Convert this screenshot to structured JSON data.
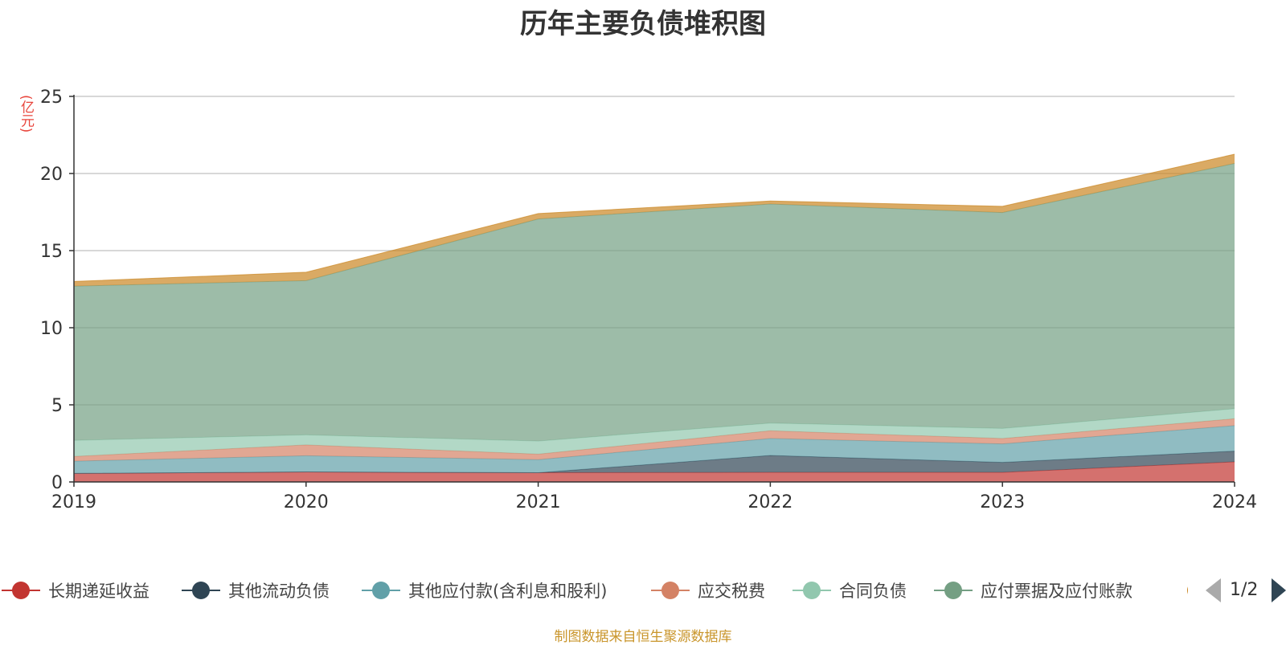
{
  "chart_data": {
    "type": "area",
    "stacked": true,
    "title": "历年主要负债堆积图",
    "ylabel": "(亿元)",
    "xlabel": "",
    "x": [
      "2019",
      "2020",
      "2021",
      "2022",
      "2023",
      "2024"
    ],
    "ylim": [
      0,
      25
    ],
    "yticks": [
      0,
      5,
      10,
      15,
      20,
      25
    ],
    "grid": true,
    "legend_position": "bottom",
    "series": [
      {
        "name": "长期递延收益",
        "color": "#c23531",
        "values": [
          0.55,
          0.65,
          0.6,
          0.62,
          0.62,
          1.3
        ]
      },
      {
        "name": "其他流动负债",
        "color": "#2f4554",
        "values": [
          0.0,
          0.0,
          0.0,
          1.1,
          0.65,
          0.7
        ]
      },
      {
        "name": "其他应付款(含利息和股利)",
        "color": "#61a0a8",
        "values": [
          0.8,
          1.05,
          0.85,
          1.1,
          1.2,
          1.65
        ]
      },
      {
        "name": "应交税费",
        "color": "#d48265",
        "values": [
          0.3,
          0.7,
          0.35,
          0.5,
          0.35,
          0.45
        ]
      },
      {
        "name": "合同负债",
        "color": "#91c7ae",
        "values": [
          1.05,
          0.65,
          0.85,
          0.5,
          0.65,
          0.65
        ]
      },
      {
        "name": "应付票据及应付账款",
        "color": "#749f83",
        "values": [
          10.0,
          10.0,
          14.4,
          14.2,
          14.0,
          15.9
        ]
      },
      {
        "name": "",
        "color": "#ca8622",
        "values": [
          0.3,
          0.55,
          0.35,
          0.2,
          0.4,
          0.6
        ]
      }
    ]
  },
  "legend": {
    "items": [
      {
        "label": "长期递延收益",
        "color": "#c23531",
        "icon": "circle-line"
      },
      {
        "label": "其他流动负债",
        "color": "#2f4554",
        "icon": "circle-line"
      },
      {
        "label": "其他应付款(含利息和股利)",
        "color": "#61a0a8",
        "icon": "circle-line"
      },
      {
        "label": "应交税费",
        "color": "#d48265",
        "icon": "circle-line"
      },
      {
        "label": "合同负债",
        "color": "#91c7ae",
        "icon": "circle-line"
      },
      {
        "label": "应付票据及应付账款",
        "color": "#749f83",
        "icon": "circle-line"
      }
    ],
    "clipped_item_color": "#ca8622",
    "page_indicator": "1/2"
  },
  "source_note": "制图数据来自恒生聚源数据库"
}
